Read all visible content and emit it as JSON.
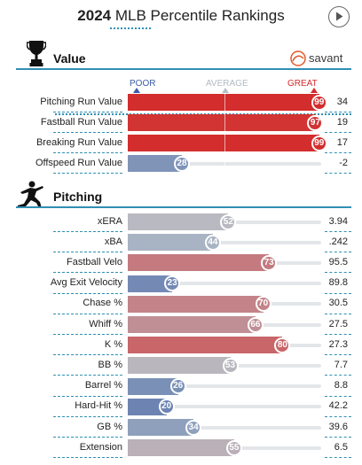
{
  "header": {
    "year": "2024",
    "title_rest": "MLB Percentile Rankings"
  },
  "sections": {
    "value_title": "Value",
    "pitching_title": "Pitching",
    "savant_brand": "savant"
  },
  "scale": {
    "poor": "POOR",
    "average": "AVERAGE",
    "great": "GREAT",
    "poor_color": "#3b5da6",
    "average_color": "#b7bfc7",
    "great_color": "#d42a2a"
  },
  "chart_data": [
    {
      "type": "bar",
      "section": "Value",
      "orientation": "horizontal",
      "xlim": [
        0,
        100
      ],
      "rows": [
        {
          "label": "Pitching Run Value",
          "percentile": 99,
          "value": "34"
        },
        {
          "label": "Fastball Run Value",
          "percentile": 97,
          "value": "19"
        },
        {
          "label": "Breaking Run Value",
          "percentile": 99,
          "value": "17"
        },
        {
          "label": "Offspeed Run Value",
          "percentile": 28,
          "value": "-2"
        }
      ]
    },
    {
      "type": "bar",
      "section": "Pitching",
      "orientation": "horizontal",
      "xlim": [
        0,
        100
      ],
      "rows": [
        {
          "label": "xERA",
          "percentile": 52,
          "value": "3.94"
        },
        {
          "label": "xBA",
          "percentile": 44,
          "value": ".242"
        },
        {
          "label": "Fastball Velo",
          "percentile": 73,
          "value": "95.5"
        },
        {
          "label": "Avg Exit Velocity",
          "percentile": 23,
          "value": "89.8"
        },
        {
          "label": "Chase %",
          "percentile": 70,
          "value": "30.5"
        },
        {
          "label": "Whiff %",
          "percentile": 66,
          "value": "27.5"
        },
        {
          "label": "K %",
          "percentile": 80,
          "value": "27.3"
        },
        {
          "label": "BB %",
          "percentile": 53,
          "value": "7.7"
        },
        {
          "label": "Barrel %",
          "percentile": 26,
          "value": "8.8"
        },
        {
          "label": "Hard-Hit %",
          "percentile": 20,
          "value": "42.2"
        },
        {
          "label": "GB %",
          "percentile": 34,
          "value": "39.6"
        },
        {
          "label": "Extension",
          "percentile": 55,
          "value": "6.5"
        }
      ]
    }
  ]
}
